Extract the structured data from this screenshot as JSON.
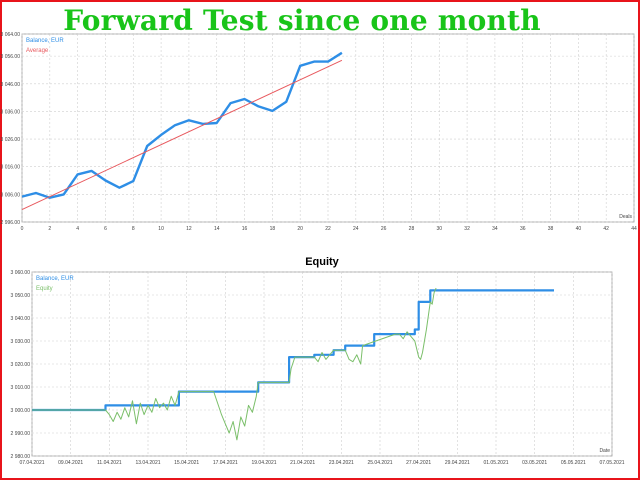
{
  "banner_title": "Forward Test since one month",
  "chart_data": [
    {
      "type": "line",
      "title": "",
      "xlabel": "Deals",
      "ylabel": "",
      "xlim": [
        0,
        44
      ],
      "ylim": [
        2996,
        3064
      ],
      "grid": true,
      "legend_position": "top-left",
      "x_ticks": [
        "0",
        "2",
        "4",
        "6",
        "8",
        "10",
        "12",
        "14",
        "16",
        "18",
        "20",
        "22",
        "24",
        "26",
        "28",
        "30",
        "32",
        "34",
        "36",
        "38",
        "40",
        "42",
        "44"
      ],
      "y_ticks": [
        "2 996.00",
        "3 006.00",
        "3 016.00",
        "3 026.00",
        "3 036.00",
        "3 046.00",
        "3 056.00",
        "3 064.00"
      ],
      "series": [
        {
          "name": "Balance, EUR",
          "color": "#2e8ee6",
          "x": [
            0,
            1,
            2,
            3,
            4,
            5,
            6,
            7,
            8,
            9,
            10,
            11,
            12,
            13,
            14,
            15,
            16,
            17,
            18,
            19,
            20,
            21,
            22,
            23
          ],
          "values": [
            3005.2,
            3006.5,
            3004.8,
            3006.0,
            3013.2,
            3014.5,
            3011.0,
            3008.4,
            3010.8,
            3023.5,
            3027.5,
            3031.0,
            3032.8,
            3031.5,
            3031.8,
            3039.0,
            3040.5,
            3037.8,
            3036.2,
            3039.5,
            3052.5,
            3054.0,
            3054.0,
            3057.2
          ]
        },
        {
          "name": "Average",
          "color": "#e8595e",
          "x": [
            0,
            23
          ],
          "values": [
            3000.5,
            3054.5
          ]
        }
      ]
    },
    {
      "type": "line",
      "title": "Equity",
      "xlabel": "Date",
      "ylabel": "",
      "ylim": [
        2980,
        3060
      ],
      "grid": true,
      "legend_position": "top-left",
      "x_ticks": [
        "07.04.2021",
        "09.04.2021",
        "11.04.2021",
        "13.04.2021",
        "15.04.2021",
        "17.04.2021",
        "19.04.2021",
        "21.04.2021",
        "23.04.2021",
        "25.04.2021",
        "27.04.2021",
        "29.04.2021",
        "01.05.2021",
        "03.05.2021",
        "05.05.2021",
        "07.05.2021"
      ],
      "y_ticks": [
        "2 980.00",
        "2 990.00",
        "3 000.00",
        "3 010.00",
        "3 020.00",
        "3 030.00",
        "3 040.00",
        "3 050.00",
        "3 060.00"
      ],
      "series": [
        {
          "name": "Balance, EUR",
          "color": "#2e8ee6",
          "x": [
            0,
            3.8,
            3.8,
            7.6,
            7.6,
            9.4,
            9.4,
            11.7,
            11.7,
            13.3,
            13.3,
            13.6,
            13.6,
            14.6,
            14.6,
            15.6,
            15.6,
            16.2,
            16.2,
            17.1,
            17.1,
            17.7,
            17.7,
            18.8,
            18.8,
            19.8,
            19.8,
            20.0,
            20.0,
            20.6,
            20.6,
            27.0,
            27.0
          ],
          "values": [
            3000,
            3000,
            3002,
            3002,
            3008,
            3008,
            3008,
            3008,
            3012,
            3012,
            3023,
            3023,
            3023,
            3023,
            3024,
            3024,
            3026,
            3026,
            3028,
            3028,
            3028,
            3028,
            3033,
            3033,
            3033,
            3033,
            3035,
            3035,
            3047,
            3047,
            3052,
            3052,
            3052
          ]
        },
        {
          "name": "Equity",
          "color": "#7bbf6a",
          "x": [
            0,
            3.8,
            4.0,
            4.2,
            4.4,
            4.6,
            4.8,
            5.0,
            5.2,
            5.4,
            5.6,
            5.8,
            6.0,
            6.2,
            6.4,
            6.6,
            6.8,
            7.0,
            7.2,
            7.4,
            7.6,
            9.4,
            9.6,
            9.8,
            10.0,
            10.2,
            10.4,
            10.6,
            10.8,
            11.0,
            11.2,
            11.4,
            11.6,
            11.7,
            13.3,
            13.4,
            13.6,
            14.6,
            14.8,
            15.0,
            15.2,
            15.4,
            15.6,
            16.2,
            16.4,
            16.6,
            16.8,
            17.0,
            17.1,
            18.8,
            19.0,
            19.2,
            19.4,
            19.6,
            19.8,
            20.0,
            20.1,
            20.2,
            20.4,
            20.6,
            20.7,
            20.8,
            20.9
          ],
          "values": [
            3000,
            3000,
            2998,
            2995,
            2999,
            2996,
            3001,
            2997,
            3004,
            2994,
            3003,
            2998,
            3002,
            2999,
            3005,
            3001,
            3003,
            3000,
            3006,
            3002,
            3008,
            3008,
            3003,
            2998,
            2994,
            2990,
            2995,
            2987,
            2997,
            2993,
            3002,
            2999,
            3006,
            3012,
            3012,
            3018,
            3023,
            3023,
            3021,
            3025,
            3022,
            3024,
            3026,
            3026,
            3022,
            3021,
            3024,
            3020,
            3028,
            3033,
            3033,
            3031,
            3034,
            3032,
            3030,
            3023,
            3022,
            3025,
            3035,
            3047,
            3046,
            3051,
            3053
          ]
        }
      ]
    }
  ]
}
